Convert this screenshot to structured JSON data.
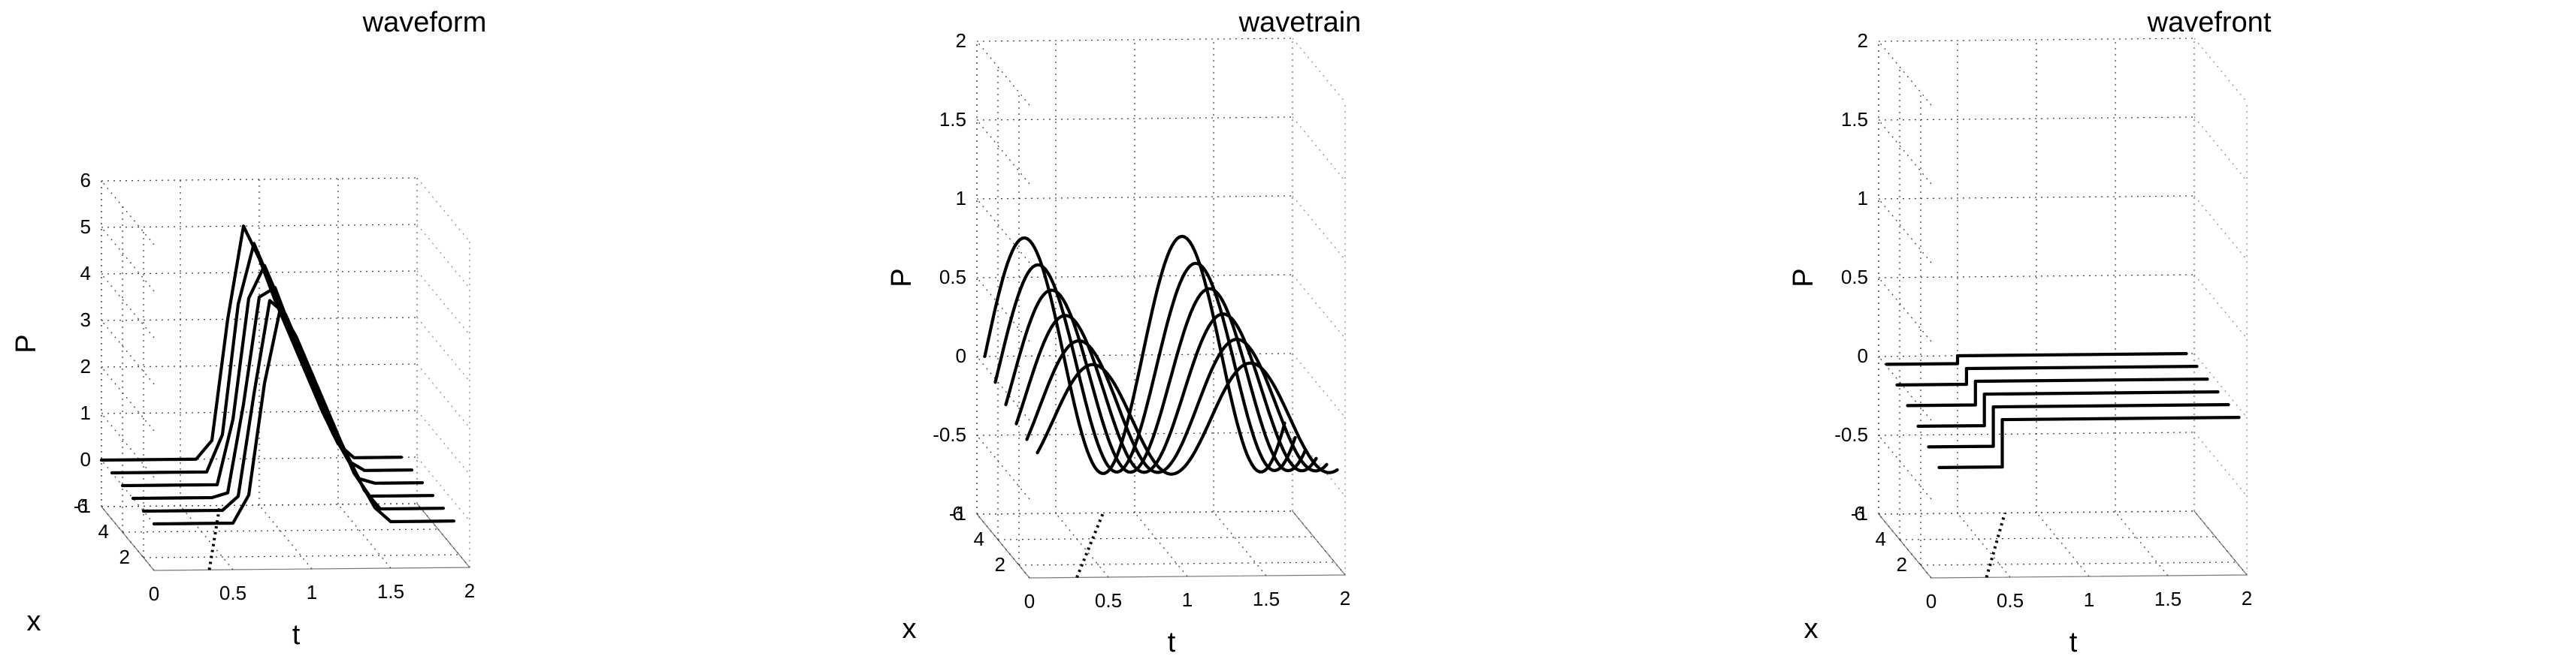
{
  "chart_data": [
    {
      "type": "line",
      "title": "waveform",
      "xlabel": "t",
      "ylabel": "x",
      "zlabel": "P",
      "xlim": [
        0,
        2
      ],
      "ylim": [
        1,
        6
      ],
      "zlim": [
        -1,
        6
      ],
      "x_ticks": [
        "0",
        "0.5",
        "1",
        "1.5",
        "2"
      ],
      "y_ticks": [
        "2",
        "4",
        "6"
      ],
      "z_ticks": [
        "-1",
        "0",
        "1",
        "2",
        "3",
        "4",
        "5",
        "6"
      ],
      "grid": true,
      "series": [
        {
          "x": 1,
          "t": [
            0,
            0.1,
            0.2,
            0.3,
            0.4,
            0.5,
            0.6,
            0.7,
            0.8,
            0.9,
            1.0,
            1.1,
            1.2,
            1.3,
            1.4,
            1.5,
            1.6,
            1.7,
            1.8,
            1.9
          ],
          "P": [
            0,
            0,
            0,
            0,
            0,
            0,
            0.6,
            3.0,
            4.6,
            4.0,
            3.2,
            2.4,
            1.6,
            0.9,
            0.3,
            0,
            0,
            0,
            0,
            0
          ]
        },
        {
          "x": 2,
          "t": [
            0,
            0.1,
            0.2,
            0.3,
            0.4,
            0.5,
            0.6,
            0.7,
            0.8,
            0.9,
            1.0,
            1.1,
            1.2,
            1.3,
            1.4,
            1.5,
            1.6,
            1.7,
            1.8,
            1.9
          ],
          "P": [
            0,
            0,
            0,
            0,
            0,
            0,
            0.3,
            2.5,
            4.5,
            4.2,
            3.4,
            2.6,
            1.8,
            1.1,
            0.4,
            0,
            0,
            0,
            0,
            0
          ]
        },
        {
          "x": 3,
          "t": [
            0,
            0.1,
            0.2,
            0.3,
            0.4,
            0.5,
            0.6,
            0.7,
            0.8,
            0.9,
            1.0,
            1.1,
            1.2,
            1.3,
            1.4,
            1.5,
            1.6,
            1.7,
            1.8,
            1.9
          ],
          "P": [
            0,
            0,
            0,
            0,
            0,
            0,
            0.1,
            2.0,
            4.3,
            4.5,
            3.6,
            2.8,
            2.0,
            1.3,
            0.5,
            0,
            0,
            0,
            0,
            0
          ]
        },
        {
          "x": 4,
          "t": [
            0,
            0.1,
            0.2,
            0.3,
            0.4,
            0.5,
            0.6,
            0.7,
            0.8,
            0.9,
            1.0,
            1.1,
            1.2,
            1.3,
            1.4,
            1.5,
            1.6,
            1.7,
            1.8,
            1.9
          ],
          "P": [
            0,
            0,
            0,
            0,
            0,
            0,
            0,
            1.4,
            4.0,
            4.7,
            3.9,
            3.0,
            2.2,
            1.5,
            0.7,
            0.1,
            0,
            0,
            0,
            0
          ]
        },
        {
          "x": 5,
          "t": [
            0,
            0.1,
            0.2,
            0.3,
            0.4,
            0.5,
            0.6,
            0.7,
            0.8,
            0.9,
            1.0,
            1.1,
            1.2,
            1.3,
            1.4,
            1.5,
            1.6,
            1.7,
            1.8,
            1.9
          ],
          "P": [
            0,
            0,
            0,
            0,
            0,
            0,
            0,
            0.8,
            3.6,
            4.9,
            4.1,
            3.2,
            2.4,
            1.6,
            0.8,
            0.2,
            0,
            0,
            0,
            0
          ]
        },
        {
          "x": 6,
          "t": [
            0,
            0.1,
            0.2,
            0.3,
            0.4,
            0.5,
            0.6,
            0.7,
            0.8,
            0.9,
            1.0,
            1.1,
            1.2,
            1.3,
            1.4,
            1.5,
            1.6,
            1.7,
            1.8,
            1.9
          ],
          "P": [
            0,
            0,
            0,
            0,
            0,
            0,
            0,
            0.4,
            3.0,
            5.0,
            4.3,
            3.4,
            2.6,
            1.8,
            1.0,
            0.3,
            0,
            0,
            0,
            0
          ]
        }
      ],
      "marker_line": {
        "t": [
          0.35,
          0.75
        ],
        "x": [
          1,
          6
        ],
        "P": -1
      }
    },
    {
      "type": "line",
      "title": "wavetrain",
      "xlabel": "t",
      "ylabel": "x",
      "zlabel": "P",
      "xlim": [
        0,
        2
      ],
      "ylim": [
        1,
        6
      ],
      "zlim": [
        -1,
        2
      ],
      "x_ticks": [
        "0",
        "0.5",
        "1",
        "1.5",
        "2"
      ],
      "y_ticks": [
        "2",
        "4",
        "6"
      ],
      "z_ticks": [
        "-1",
        "-0.5",
        "0",
        "0.5",
        "1",
        "1.5",
        "2"
      ],
      "grid": true,
      "series": [
        {
          "x": 1,
          "amplitude": 0.35,
          "period": 1.0,
          "phase_t": 0.4,
          "t_range": [
            0.05,
            1.95
          ]
        },
        {
          "x": 2,
          "amplitude": 0.42,
          "period": 1.0,
          "phase_t": 0.38,
          "t_range": [
            0.05,
            1.95
          ]
        },
        {
          "x": 3,
          "amplitude": 0.5,
          "period": 1.0,
          "phase_t": 0.36,
          "t_range": [
            0.05,
            1.95
          ]
        },
        {
          "x": 4,
          "amplitude": 0.58,
          "period": 1.0,
          "phase_t": 0.34,
          "t_range": [
            0.05,
            1.95
          ]
        },
        {
          "x": 5,
          "amplitude": 0.66,
          "period": 1.0,
          "phase_t": 0.32,
          "t_range": [
            0.05,
            1.95
          ]
        },
        {
          "x": 6,
          "amplitude": 0.75,
          "period": 1.0,
          "phase_t": 0.3,
          "t_range": [
            0.05,
            1.95
          ]
        }
      ],
      "marker_line": {
        "t": [
          0.3,
          0.8
        ],
        "x": [
          1,
          6
        ],
        "P": -1
      }
    },
    {
      "type": "line",
      "title": "wavefront",
      "xlabel": "t",
      "ylabel": "x",
      "zlabel": "P",
      "xlim": [
        0,
        2
      ],
      "ylim": [
        1,
        6
      ],
      "zlim": [
        -1,
        2
      ],
      "x_ticks": [
        "0",
        "0.5",
        "1",
        "1.5",
        "2"
      ],
      "y_ticks": [
        "2",
        "4",
        "6"
      ],
      "z_ticks": [
        "-1",
        "-0.5",
        "0",
        "0.5",
        "1",
        "1.5",
        "2"
      ],
      "grid": true,
      "series": [
        {
          "x": 1,
          "step_t": 0.45,
          "P_before": -0.3,
          "P_after": 0,
          "t_range": [
            0.05,
            1.95
          ]
        },
        {
          "x": 2,
          "step_t": 0.46,
          "P_before": -0.25,
          "P_after": 0,
          "t_range": [
            0.05,
            1.95
          ]
        },
        {
          "x": 3,
          "step_t": 0.47,
          "P_before": -0.2,
          "P_after": 0,
          "t_range": [
            0.05,
            1.95
          ]
        },
        {
          "x": 4,
          "step_t": 0.48,
          "P_before": -0.15,
          "P_after": 0,
          "t_range": [
            0.05,
            1.95
          ]
        },
        {
          "x": 5,
          "step_t": 0.49,
          "P_before": -0.1,
          "P_after": 0,
          "t_range": [
            0.05,
            1.95
          ]
        },
        {
          "x": 6,
          "step_t": 0.5,
          "P_before": -0.05,
          "P_after": 0,
          "t_range": [
            0.05,
            1.95
          ]
        }
      ],
      "marker_line": {
        "t": [
          0.35,
          0.8
        ],
        "x": [
          1,
          6
        ],
        "P": -1
      }
    }
  ]
}
